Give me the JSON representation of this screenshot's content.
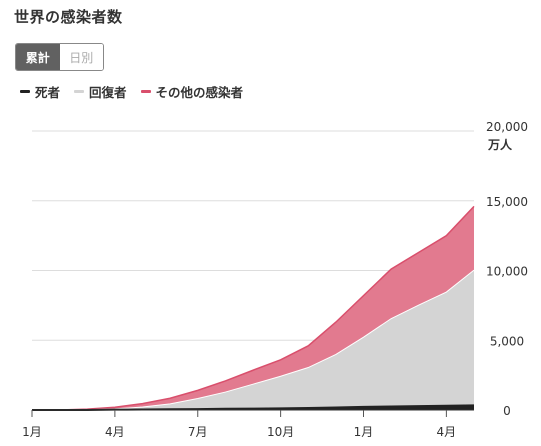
{
  "title": "世界の感染者数",
  "toggle": {
    "cumulative_label": "累計",
    "daily_label": "日別",
    "selected": "累計"
  },
  "colors": {
    "deaths": "#222222",
    "recovered": "#d4d4d4",
    "other": "#e27a8f",
    "other_line": "#d94f6c",
    "grid": "#dddddd"
  },
  "chart_data": {
    "type": "area",
    "stacked": true,
    "unit_label": "万人",
    "x": [
      "2020-01",
      "2020-02",
      "2020-03",
      "2020-04",
      "2020-05",
      "2020-06",
      "2020-07",
      "2020-08",
      "2020-09",
      "2020-10",
      "2020-11",
      "2020-12",
      "2021-01",
      "2021-02",
      "2021-03",
      "2021-04",
      "2021-05"
    ],
    "x_ticks": [
      "1月",
      "4月",
      "7月",
      "10月",
      "1月",
      "4月"
    ],
    "x_tick_positions": [
      0,
      3,
      6,
      9,
      12,
      15
    ],
    "y_ticks": [
      "0",
      "5,000",
      "10,000",
      "15,000",
      "20,000"
    ],
    "y_tick_values": [
      0,
      5000,
      10000,
      15000,
      20000
    ],
    "ylim": [
      0,
      20000
    ],
    "legend_position": "top-left",
    "series": [
      {
        "name": "死者",
        "values": [
          0,
          0,
          4,
          23,
          37,
          50,
          67,
          85,
          100,
          118,
          145,
          180,
          220,
          250,
          275,
          305,
          330
        ]
      },
      {
        "name": "回復者",
        "values": [
          0,
          1,
          15,
          54,
          180,
          390,
          760,
          1200,
          1750,
          2300,
          2900,
          3800,
          5000,
          6300,
          7250,
          8150,
          9700
        ]
      },
      {
        "name": "その他の感染者",
        "values": [
          0,
          2,
          47,
          120,
          240,
          400,
          580,
          800,
          1000,
          1180,
          1555,
          2320,
          2980,
          3550,
          3775,
          4045,
          4570
        ]
      }
    ]
  }
}
